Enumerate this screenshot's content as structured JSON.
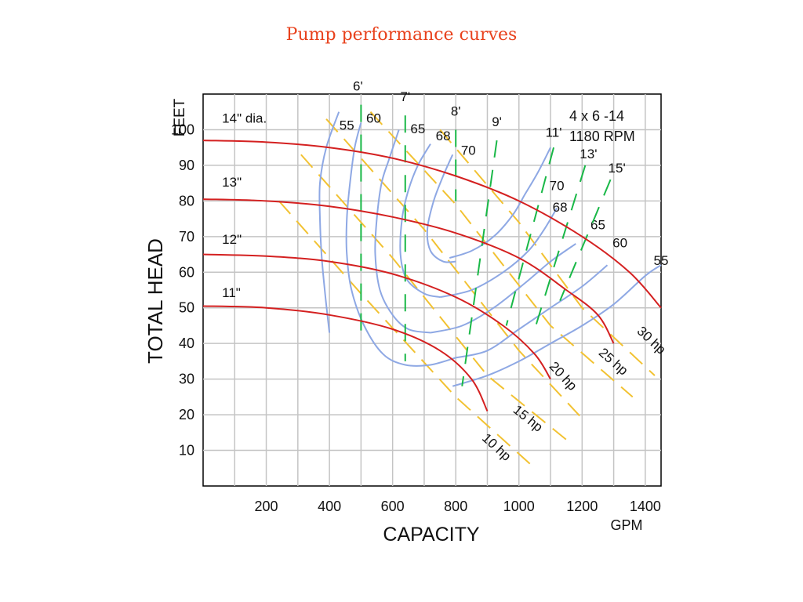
{
  "slide": {
    "title": "Pump performance curves"
  },
  "colors": {
    "impeller": "#d42020",
    "efficiency": "#8ea8e4",
    "horsepower": "#f2c232",
    "npsh": "#19b847",
    "grid": "#c4c4c4",
    "title": "#e8411c"
  },
  "chart_data": {
    "type": "line",
    "title": "Pump performance curves",
    "pump_model": "4 x 6 -14",
    "speed": "1180 RPM",
    "xlabel": "CAPACITY",
    "xunit": "GPM",
    "ylabel": "TOTAL HEAD",
    "yunit": "FEET",
    "xlim": [
      0,
      1450
    ],
    "ylim": [
      0,
      110
    ],
    "grid": true,
    "x_ticks": [
      200,
      400,
      600,
      800,
      1000,
      1200,
      1400
    ],
    "y_ticks": [
      10,
      20,
      30,
      40,
      50,
      60,
      70,
      80,
      90,
      100
    ],
    "impeller_curves": [
      {
        "label": "14\" dia.",
        "points": [
          [
            0,
            97
          ],
          [
            200,
            96.5
          ],
          [
            400,
            95
          ],
          [
            600,
            92
          ],
          [
            800,
            87
          ],
          [
            1000,
            80
          ],
          [
            1200,
            70
          ],
          [
            1350,
            60
          ],
          [
            1450,
            50
          ]
        ]
      },
      {
        "label": "13\"",
        "points": [
          [
            0,
            80.5
          ],
          [
            200,
            80
          ],
          [
            400,
            78.5
          ],
          [
            600,
            75.5
          ],
          [
            800,
            71
          ],
          [
            1000,
            64
          ],
          [
            1150,
            55
          ],
          [
            1250,
            48
          ],
          [
            1300,
            40
          ]
        ]
      },
      {
        "label": "12\"",
        "points": [
          [
            0,
            65
          ],
          [
            200,
            64.5
          ],
          [
            400,
            63
          ],
          [
            600,
            59.5
          ],
          [
            800,
            53
          ],
          [
            950,
            45
          ],
          [
            1050,
            37
          ],
          [
            1100,
            30
          ]
        ]
      },
      {
        "label": "11\"",
        "points": [
          [
            0,
            50.5
          ],
          [
            200,
            50
          ],
          [
            400,
            48
          ],
          [
            600,
            44
          ],
          [
            750,
            38
          ],
          [
            850,
            30
          ],
          [
            900,
            21
          ]
        ]
      }
    ],
    "efficiency_curves": [
      {
        "label": "55",
        "points": [
          [
            430,
            105
          ],
          [
            390,
            95
          ],
          [
            370,
            85
          ],
          [
            370,
            75
          ],
          [
            375,
            65
          ],
          [
            385,
            55
          ],
          [
            400,
            43
          ]
        ],
        "label_at": [
          455,
          100
        ]
      },
      {
        "label": "60",
        "points": [
          [
            500,
            102
          ],
          [
            480,
            95
          ],
          [
            465,
            85
          ],
          [
            455,
            75
          ],
          [
            455,
            65
          ],
          [
            470,
            55
          ],
          [
            510,
            45
          ],
          [
            570,
            37
          ],
          [
            640,
            34
          ],
          [
            720,
            34
          ],
          [
            800,
            36
          ]
        ],
        "label_at": [
          540,
          102
        ]
      },
      {
        "label": "65",
        "points": [
          [
            620,
            100
          ],
          [
            590,
            92
          ],
          [
            565,
            85
          ],
          [
            550,
            75
          ],
          [
            545,
            65
          ],
          [
            560,
            55
          ],
          [
            600,
            48
          ],
          [
            650,
            44
          ],
          [
            720,
            43
          ]
        ],
        "label_at": [
          680,
          99
        ]
      },
      {
        "label": "68",
        "points": [
          [
            720,
            96
          ],
          [
            680,
            90
          ],
          [
            650,
            83
          ],
          [
            630,
            75
          ],
          [
            625,
            65
          ],
          [
            645,
            58
          ],
          [
            700,
            54
          ],
          [
            750,
            53
          ]
        ],
        "label_at": [
          760,
          97
        ]
      },
      {
        "label": "70",
        "points": [
          [
            790,
            93
          ],
          [
            760,
            87
          ],
          [
            730,
            80
          ],
          [
            710,
            72
          ],
          [
            720,
            66
          ],
          [
            760,
            63
          ],
          [
            800,
            63
          ]
        ],
        "label_at": [
          840,
          93
        ]
      },
      {
        "label": "70",
        "points": [
          [
            780,
            64
          ],
          [
            850,
            66
          ],
          [
            920,
            70
          ],
          [
            980,
            76
          ],
          [
            1020,
            82
          ],
          [
            1060,
            88
          ],
          [
            1100,
            95
          ]
        ],
        "label_at": [
          1120,
          83
        ]
      },
      {
        "label": "68",
        "points": [
          [
            750,
            53
          ],
          [
            850,
            55
          ],
          [
            950,
            60
          ],
          [
            1030,
            66
          ],
          [
            1080,
            72
          ],
          [
            1120,
            78
          ]
        ],
        "label_at": [
          1130,
          77
        ]
      },
      {
        "label": "65",
        "points": [
          [
            720,
            43
          ],
          [
            820,
            45
          ],
          [
            920,
            50
          ],
          [
            1020,
            57
          ],
          [
            1100,
            63
          ],
          [
            1180,
            68
          ]
        ],
        "label_at": [
          1250,
          72
        ]
      },
      {
        "label": "60",
        "points": [
          [
            800,
            36
          ],
          [
            900,
            38
          ],
          [
            1000,
            44
          ],
          [
            1100,
            50
          ],
          [
            1200,
            56
          ],
          [
            1280,
            62
          ]
        ],
        "label_at": [
          1320,
          67
        ]
      },
      {
        "label": "55",
        "points": [
          [
            790,
            28
          ],
          [
            900,
            31
          ],
          [
            1000,
            35
          ],
          [
            1100,
            40
          ],
          [
            1200,
            45
          ],
          [
            1300,
            51
          ],
          [
            1400,
            59
          ],
          [
            1450,
            62
          ]
        ],
        "label_at": [
          1450,
          62
        ]
      }
    ],
    "horsepower_lines": [
      {
        "label": "10 hp",
        "points": [
          [
            240,
            80
          ],
          [
            500,
            54
          ],
          [
            800,
            25
          ],
          [
            1050,
            5
          ]
        ],
        "label_at": [
          920,
          10
        ]
      },
      {
        "label": "15 hp",
        "points": [
          [
            310,
            93
          ],
          [
            600,
            64
          ],
          [
            900,
            31
          ],
          [
            1150,
            13
          ]
        ],
        "label_at": [
          1020,
          18
        ]
      },
      {
        "label": "20 hp",
        "points": [
          [
            390,
            103
          ],
          [
            700,
            72
          ],
          [
            1000,
            38
          ],
          [
            1210,
            18
          ]
        ],
        "label_at": [
          1130,
          30
        ]
      },
      {
        "label": "25 hp",
        "points": [
          [
            530,
            105
          ],
          [
            800,
            79
          ],
          [
            1100,
            45
          ],
          [
            1360,
            25
          ]
        ],
        "label_at": [
          1290,
          34
        ]
      },
      {
        "label": "30 hp",
        "points": [
          [
            750,
            100
          ],
          [
            1000,
            74
          ],
          [
            1200,
            50
          ],
          [
            1430,
            31
          ]
        ],
        "label_at": [
          1410,
          40
        ]
      }
    ],
    "npsh_lines": [
      {
        "label": "6'",
        "points": [
          [
            500,
            107
          ],
          [
            500,
            41
          ]
        ],
        "label_at": [
          490,
          111
        ]
      },
      {
        "label": "7'",
        "points": [
          [
            640,
            104
          ],
          [
            640,
            35
          ]
        ],
        "label_at": [
          640,
          108
        ]
      },
      {
        "label": "8'",
        "points": [
          [
            800,
            100
          ],
          [
            800,
            80
          ]
        ],
        "label_at": [
          800,
          104
        ]
      },
      {
        "label": "9'",
        "points": [
          [
            930,
            97
          ],
          [
            820,
            28
          ]
        ],
        "label_at": [
          930,
          101
        ]
      },
      {
        "label": "11'",
        "points": [
          [
            1110,
            95
          ],
          [
            960,
            45
          ]
        ],
        "label_at": [
          1110,
          98
        ]
      },
      {
        "label": "13'",
        "points": [
          [
            1210,
            90
          ],
          [
            1050,
            44
          ]
        ],
        "label_at": [
          1220,
          92
        ]
      },
      {
        "label": "15'",
        "points": [
          [
            1290,
            86
          ],
          [
            1130,
            52
          ]
        ],
        "label_at": [
          1310,
          88
        ]
      }
    ]
  }
}
